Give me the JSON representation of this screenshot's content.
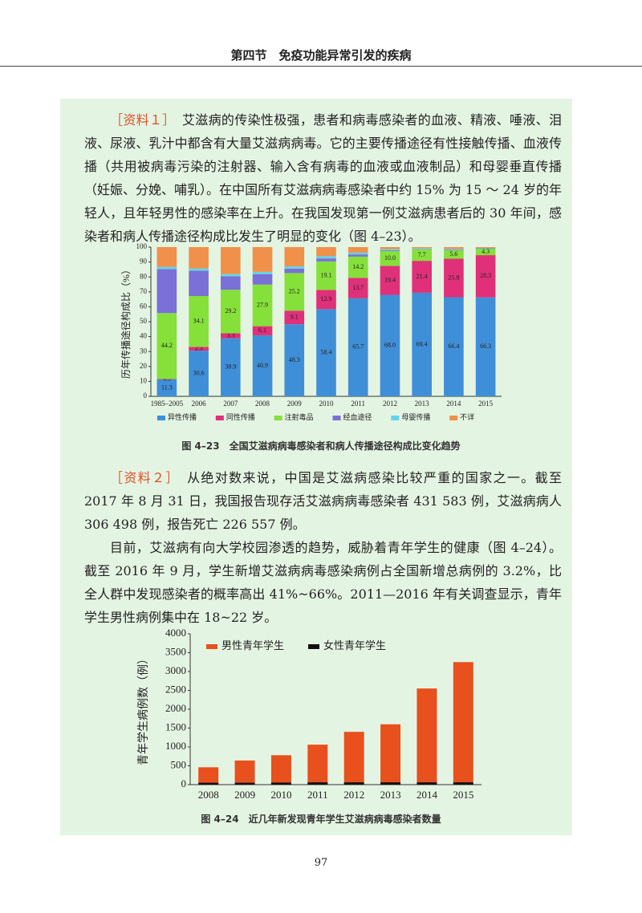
{
  "header": {
    "title": "第四节　免疫功能异常引发的疾病"
  },
  "paragraphs": [
    {
      "label": "［资料１］",
      "text": "艾滋病的传染性极强，患者和病毒感染者的血液、精液、唾液、泪液、尿液、乳汁中都含有大量艾滋病病毒。它的主要传播途径有性接触传播、血液传播（共用被病毒污染的注射器、输入含有病毒的血液或血液制品）和母婴垂直传播（妊娠、分娩、哺乳）。在中国所有艾滋病病毒感染者中约 15% 为 15 ～ 24 岁的年轻人，且年轻男性的感染率在上升。在我国发现第一例艾滋病患者后的 30 年间，感染者和病人传播途径构成比发生了明显的变化（图 4–23）。"
    },
    {
      "label": "［资料２］",
      "text": "从绝对数来说，中国是艾滋病感染比较严重的国家之一。截至 2017 年 8 月 31 日，我国报告现存活艾滋病病毒感染者 431 583 例，艾滋病病人 306 498 例，报告死亡 226 557 例。"
    },
    {
      "text": "目前，艾滋病有向大学校园渗透的趋势，威胁着青年学生的健康（图 4–24）。截至 2016 年 9 月，学生新增艾滋病病毒感染病例占全国新增总病例的 3.2%，比全人群中发现感染者的概率高出 41%~66%。2011—2016 年有关调查显示，青年学生男性病例集中在 18~22 岁。"
    }
  ],
  "chart_data": [
    {
      "type": "stacked_bar",
      "caption": "图 4–23　全国艾滋病病毒感染者和病人传播途径构成比变化趋势",
      "y_label": "历年传播途径构成比（%）",
      "categories": [
        "1985–2005",
        "2006",
        "2007",
        "2008",
        "2009",
        "2010",
        "2011",
        "2012",
        "2013",
        "2014",
        "2015"
      ],
      "series": [
        {
          "name": "异性传播",
          "color": "#3f8fd8",
          "values": [
            11.3,
            30.6,
            38.9,
            40.9,
            48.3,
            58.4,
            65.7,
            68.0,
            69.4,
            66.4,
            66.3
          ],
          "value_labels": [
            "11.3",
            "30.6",
            "38.9",
            "40.9",
            "48.3",
            "58.4",
            "65.7",
            "68.0",
            "69.4",
            "66.4",
            "66.3"
          ]
        },
        {
          "name": "同性传播",
          "color": "#e0307a",
          "values": [
            0.3,
            2.5,
            3.3,
            6.1,
            9.1,
            12.9,
            13.7,
            19.4,
            21.4,
            25.8,
            28.3
          ],
          "value_labels": [
            "0.3",
            "2.5",
            "3.3",
            "6.1",
            "9.1",
            "12.9",
            "13.7",
            "19.4",
            "21.4",
            "25.8",
            "28.3"
          ]
        },
        {
          "name": "注射毒品",
          "color": "#86e03a",
          "values": [
            44.2,
            34.1,
            29.2,
            27.9,
            25.2,
            19.1,
            14.2,
            10.0,
            7.7,
            5.6,
            4.3
          ],
          "value_labels": [
            "44.2",
            "34.1",
            "29.2",
            "27.9",
            "25.2",
            "19.1",
            "14.2",
            "10.0",
            "7.7",
            "5.6",
            "4.3"
          ]
        },
        {
          "name": "经血途径",
          "color": "#7b6fd8",
          "values": [
            29.5,
            17,
            9,
            7,
            3,
            2,
            1.5,
            0.5,
            0.3,
            0.4,
            0.3
          ]
        },
        {
          "name": "母婴传播",
          "color": "#5fd6e8",
          "values": [
            1.5,
            1.5,
            1.5,
            1.5,
            1.5,
            1.5,
            1.2,
            0.8,
            0.5,
            0.6,
            0.3
          ]
        },
        {
          "name": "不详",
          "color": "#f0904a",
          "values": [
            13.2,
            14.3,
            18.1,
            16.6,
            12.9,
            6.1,
            3.7,
            1.3,
            0.7,
            1.2,
            0.5
          ]
        }
      ],
      "ylim": [
        0,
        100
      ],
      "yticks": [
        0,
        10,
        20,
        30,
        40,
        50,
        60,
        70,
        80,
        90,
        100
      ],
      "legend": "bottom"
    },
    {
      "type": "bar",
      "caption": "图 4–24　近几年新发现青年学生艾滋病病毒感染者数量",
      "y_label": "青年学生病例数（例）",
      "categories": [
        "2008",
        "2009",
        "2010",
        "2011",
        "2012",
        "2013",
        "2014",
        "2015"
      ],
      "series": [
        {
          "name": "男性青年学生",
          "color": "#e8501e",
          "values": [
            460,
            640,
            780,
            1060,
            1400,
            1600,
            2550,
            3250
          ]
        },
        {
          "name": "女性青年学生",
          "color": "#111111",
          "values": [
            50,
            50,
            55,
            60,
            60,
            60,
            60,
            60
          ]
        }
      ],
      "ylim": [
        0,
        4000
      ],
      "yticks": [
        0,
        500,
        1000,
        1500,
        2000,
        2500,
        3000,
        3500,
        4000
      ],
      "legend": "top-left"
    }
  ],
  "page_number": "97"
}
